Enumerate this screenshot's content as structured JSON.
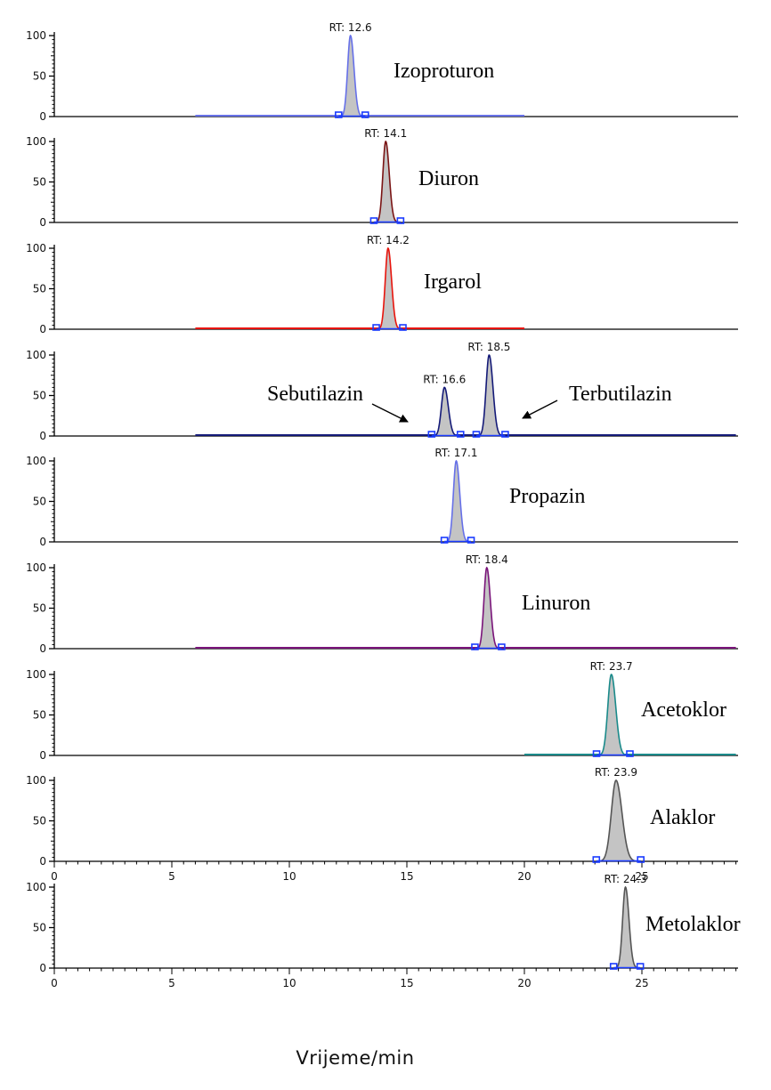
{
  "chart_data": {
    "type": "line",
    "xlabel": "Vrijeme/min",
    "x_ticks": [
      0,
      5,
      10,
      15,
      20,
      25
    ],
    "y_ticks": [
      0,
      50,
      100
    ],
    "panels": [
      {
        "compound": "Izoproturon",
        "color": "#6670e8",
        "baseline": [
          6,
          20
        ],
        "peaks": [
          {
            "label": "RT: 12.6",
            "rt": 12.6,
            "height": 100,
            "width": 0.12
          }
        ]
      },
      {
        "compound": "Diuron",
        "color": "#7a1414",
        "baseline": [
          14.1,
          14.1
        ],
        "peaks": [
          {
            "label": "RT: 14.1",
            "rt": 14.1,
            "height": 100,
            "width": 0.12
          }
        ]
      },
      {
        "compound": "Irgarol",
        "color": "#e8140c",
        "baseline": [
          6,
          20
        ],
        "peaks": [
          {
            "label": "RT: 14.2",
            "rt": 14.2,
            "height": 100,
            "width": 0.12
          }
        ]
      },
      {
        "compound": "",
        "color": "#141a78",
        "baseline": [
          6,
          29
        ],
        "peaks": [
          {
            "label": "RT: 16.6",
            "rt": 16.6,
            "height": 60,
            "width": 0.13
          },
          {
            "label": "RT: 18.5",
            "rt": 18.5,
            "height": 100,
            "width": 0.13
          }
        ],
        "annotations": [
          "Sebutilazin",
          "Terbutilazin"
        ]
      },
      {
        "compound": "Propazin",
        "color": "#6670e8",
        "baseline": [
          17.1,
          17.1
        ],
        "peaks": [
          {
            "label": "RT: 17.1",
            "rt": 17.1,
            "height": 100,
            "width": 0.12
          }
        ]
      },
      {
        "compound": "Linuron",
        "color": "#7a147a",
        "baseline": [
          6,
          29
        ],
        "peaks": [
          {
            "label": "RT: 18.4",
            "rt": 18.4,
            "height": 100,
            "width": 0.12
          }
        ]
      },
      {
        "compound": "Acetoklor",
        "color": "#1a8a8a",
        "baseline": [
          20,
          29
        ],
        "peaks": [
          {
            "label": "RT: 23.7",
            "rt": 23.7,
            "height": 100,
            "width": 0.15
          }
        ]
      },
      {
        "compound": "Alaklor",
        "color": "#555555",
        "baseline": [
          23.9,
          23.9
        ],
        "peaks": [
          {
            "label": "RT: 23.9",
            "rt": 23.9,
            "height": 100,
            "width": 0.2
          }
        ]
      },
      {
        "compound": "Metolaklor",
        "color": "#555555",
        "baseline": [
          24.3,
          24.3
        ],
        "peaks": [
          {
            "label": "RT: 24.3",
            "rt": 24.3,
            "height": 100,
            "width": 0.12
          }
        ]
      }
    ]
  }
}
